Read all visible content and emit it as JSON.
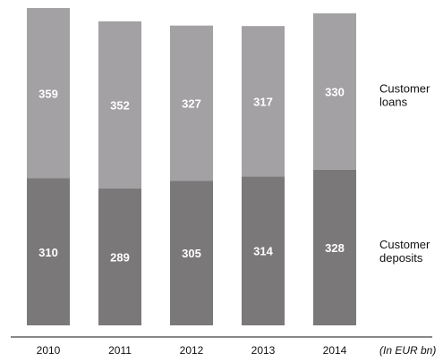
{
  "chart_data": {
    "type": "bar",
    "stacked": true,
    "categories": [
      "2010",
      "2011",
      "2012",
      "2013",
      "2014"
    ],
    "series": [
      {
        "name": "Customer deposits",
        "legend_lines": [
          "Customer",
          "deposits"
        ],
        "values": [
          310,
          289,
          305,
          314,
          328
        ],
        "color": "#7b787a"
      },
      {
        "name": "Customer loans",
        "legend_lines": [
          "Customer",
          "loans"
        ],
        "values": [
          359,
          352,
          327,
          317,
          330
        ],
        "color": "#a3a1a3"
      }
    ],
    "unit_label": "(In EUR bn)",
    "ylim": [
      0,
      680
    ],
    "grid": false,
    "legend_position": "right"
  }
}
